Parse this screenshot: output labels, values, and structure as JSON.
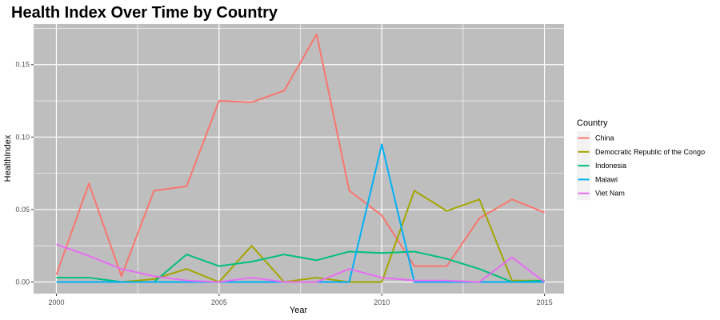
{
  "chart_data": {
    "type": "line",
    "title": "Health Index Over Time by Country",
    "xlabel": "Year",
    "ylabel": "HealthIndex",
    "xlim": [
      1999.3,
      2015.6
    ],
    "ylim": [
      -0.008,
      0.178
    ],
    "x_ticks": [
      2000,
      2005,
      2010,
      2015
    ],
    "x_tick_labels": [
      "2000",
      "2005",
      "2010",
      "2015"
    ],
    "y_ticks": [
      0.0,
      0.05,
      0.1,
      0.15
    ],
    "y_tick_labels": [
      "0.00",
      "0.05",
      "0.10",
      "0.15"
    ],
    "grid": true,
    "legend_title": "Country",
    "legend_position": "right",
    "x": [
      2000,
      2001,
      2002,
      2003,
      2004,
      2005,
      2006,
      2007,
      2008,
      2009,
      2010,
      2011,
      2012,
      2013,
      2014,
      2015
    ],
    "series": [
      {
        "name": "China",
        "color": "#F8766D",
        "values": [
          0.005,
          0.068,
          0.004,
          0.063,
          0.066,
          0.125,
          0.124,
          0.132,
          0.171,
          0.063,
          0.046,
          0.011,
          0.011,
          0.044,
          0.057,
          0.048
        ]
      },
      {
        "name": "Democratic Republic of the Congo",
        "color": "#A3A500",
        "values": [
          0.0,
          0.0,
          0.0,
          0.002,
          0.009,
          0.0,
          0.025,
          0.0,
          0.003,
          0.0,
          0.0,
          0.063,
          0.049,
          0.057,
          0.001,
          0.001
        ]
      },
      {
        "name": "Indonesia",
        "color": "#00BF7D",
        "values": [
          0.003,
          0.003,
          0.0,
          0.0,
          0.019,
          0.011,
          0.014,
          0.019,
          0.015,
          0.021,
          0.02,
          0.021,
          0.016,
          0.009,
          0.0,
          0.001
        ]
      },
      {
        "name": "Malawi",
        "color": "#00B0F6",
        "values": [
          0.0,
          0.0,
          0.0,
          0.0,
          0.0,
          0.0,
          0.0,
          0.0,
          0.0,
          0.0,
          0.095,
          0.0,
          0.0,
          0.0,
          0.0,
          0.0
        ]
      },
      {
        "name": "Viet Nam",
        "color": "#E76BF3",
        "values": [
          0.026,
          0.018,
          0.009,
          0.004,
          0.001,
          0.0,
          0.003,
          0.0,
          0.0,
          0.009,
          0.003,
          0.001,
          0.001,
          0.0,
          0.017,
          0.0
        ]
      }
    ]
  }
}
